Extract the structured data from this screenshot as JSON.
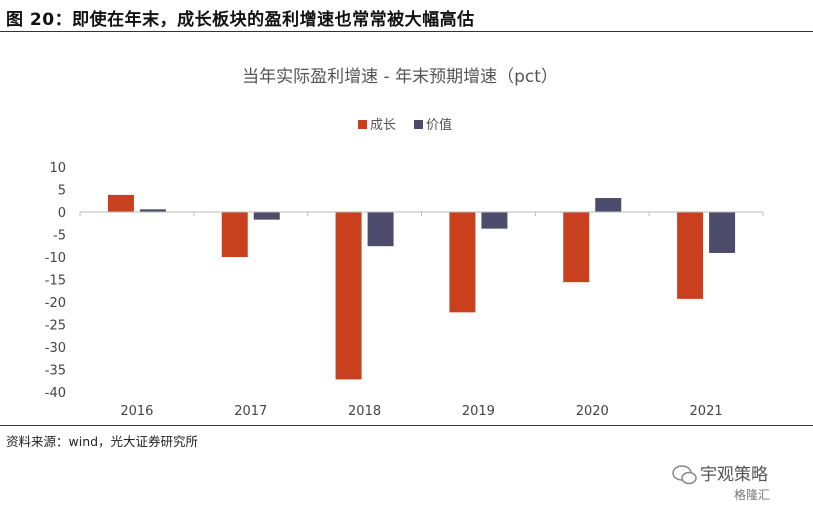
{
  "figure": {
    "title": "图 20：即使在年末，成长板块的盈利增速也常常被大幅高估",
    "source": "资料来源：wind，光大证券研究所"
  },
  "watermark": {
    "name": "宇观策略",
    "sub": "格隆汇",
    "icon": "wechat-icon"
  },
  "chart_data": {
    "type": "bar",
    "title": "当年实际盈利增速 - 年末预期增速（pct）",
    "xlabel": "",
    "ylabel": "",
    "categories": [
      "2016",
      "2017",
      "2018",
      "2019",
      "2020",
      "2021"
    ],
    "series": [
      {
        "name": "成长",
        "color": "#C8401E",
        "values": [
          3.8,
          -10.0,
          -37.2,
          -22.3,
          -15.6,
          -19.3
        ]
      },
      {
        "name": "价值",
        "color": "#4E4C6C",
        "values": [
          0.6,
          -1.7,
          -7.6,
          -3.7,
          3.1,
          -9.1
        ]
      }
    ],
    "ylim": [
      -40,
      10
    ],
    "yticks": [
      10,
      5,
      0,
      -5,
      -10,
      -15,
      -20,
      -25,
      -30,
      -35,
      -40
    ],
    "grid": false,
    "legend": "top-center"
  }
}
